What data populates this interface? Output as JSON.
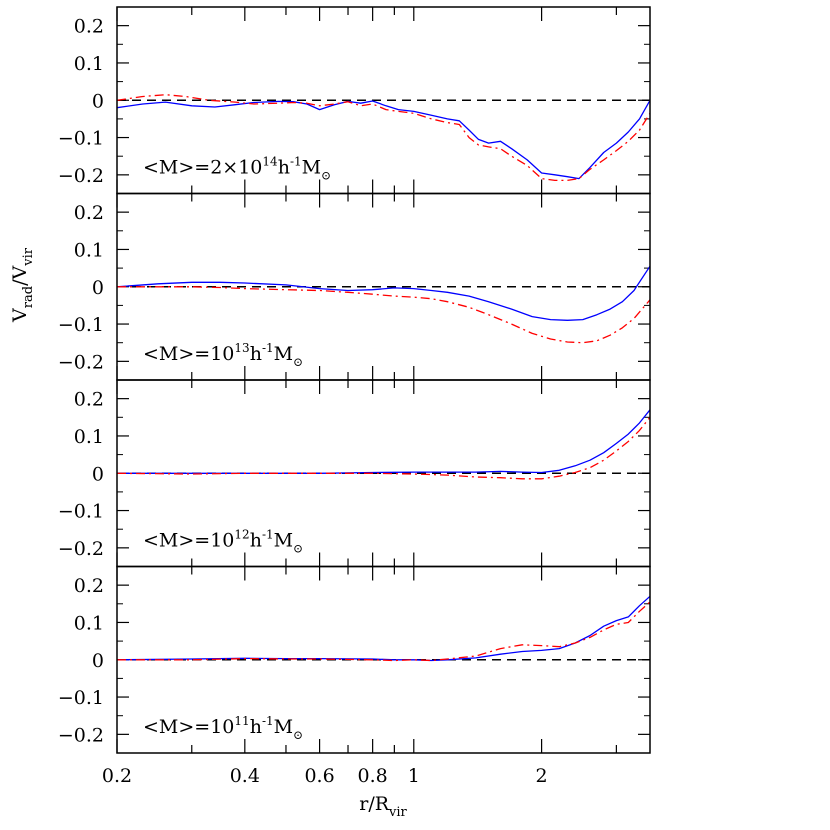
{
  "chart_data": {
    "type": "line",
    "layout": "4 vertically stacked panels sharing x-axis",
    "x_scale": "log",
    "xlim": [
      0.2,
      3.6
    ],
    "ylim": [
      -0.25,
      0.25
    ],
    "x_ticks": [
      {
        "value": 0.2,
        "label": "0.2"
      },
      {
        "value": 0.4,
        "label": "0.4"
      },
      {
        "value": 0.6,
        "label": "0.6"
      },
      {
        "value": 0.8,
        "label": "0.8"
      },
      {
        "value": 1,
        "label": "1"
      },
      {
        "value": 2,
        "label": "2"
      }
    ],
    "x_minor_ticks": [
      0.3,
      0.5,
      0.7,
      0.9,
      3
    ],
    "y_ticks": [
      {
        "value": 0.2,
        "label": "0.2"
      },
      {
        "value": 0.1,
        "label": "0.1"
      },
      {
        "value": 0,
        "label": "0"
      },
      {
        "value": -0.1,
        "label": "−0.1"
      },
      {
        "value": -0.2,
        "label": "−0.2"
      }
    ],
    "xlabel": {
      "main": "r/R",
      "sub": "vir"
    },
    "ylabel": {
      "main": "V",
      "sub1": "rad",
      "slash": "/V",
      "sub2": "vir"
    },
    "reference_line": {
      "y": 0,
      "style": "dashed",
      "color": "#000000"
    },
    "series_styles": [
      {
        "id": "solid",
        "color": "#0000ff",
        "style": "solid"
      },
      {
        "id": "dashdot",
        "color": "#ff0000",
        "style": "dash-dot"
      }
    ],
    "panels": [
      {
        "annotation": {
          "pre": "<M>=2×10",
          "exp": "14",
          "mid": "h",
          "exp2": "-1",
          "m": "M",
          "sub": "⊙"
        },
        "series": [
          {
            "style": "solid",
            "x": [
              0.2,
              0.23,
              0.26,
              0.3,
              0.34,
              0.38,
              0.42,
              0.48,
              0.52,
              0.56,
              0.6,
              0.65,
              0.7,
              0.75,
              0.8,
              0.86,
              0.92,
              1.0,
              1.1,
              1.2,
              1.28,
              1.35,
              1.42,
              1.5,
              1.6,
              1.7,
              1.85,
              2.0,
              2.15,
              2.3,
              2.45,
              2.6,
              2.8,
              3.0,
              3.2,
              3.4,
              3.6
            ],
            "y": [
              -0.02,
              -0.01,
              -0.005,
              -0.015,
              -0.018,
              -0.012,
              -0.006,
              -0.003,
              -0.004,
              -0.01,
              -0.025,
              -0.012,
              -0.003,
              -0.008,
              -0.002,
              -0.015,
              -0.025,
              -0.03,
              -0.04,
              -0.05,
              -0.055,
              -0.08,
              -0.105,
              -0.115,
              -0.11,
              -0.13,
              -0.16,
              -0.195,
              -0.2,
              -0.205,
              -0.21,
              -0.18,
              -0.14,
              -0.115,
              -0.085,
              -0.05,
              0.0
            ]
          },
          {
            "style": "dashdot",
            "x": [
              0.2,
              0.23,
              0.26,
              0.29,
              0.33,
              0.38,
              0.42,
              0.48,
              0.52,
              0.56,
              0.6,
              0.65,
              0.7,
              0.75,
              0.8,
              0.86,
              0.92,
              1.0,
              1.1,
              1.2,
              1.28,
              1.35,
              1.42,
              1.5,
              1.6,
              1.7,
              1.85,
              2.0,
              2.15,
              2.3,
              2.45,
              2.6,
              2.8,
              3.0,
              3.2,
              3.4,
              3.6
            ],
            "y": [
              0.0,
              0.01,
              0.015,
              0.01,
              0.0,
              -0.005,
              -0.01,
              -0.008,
              -0.006,
              -0.008,
              -0.015,
              -0.01,
              -0.004,
              -0.015,
              -0.01,
              -0.025,
              -0.03,
              -0.035,
              -0.05,
              -0.06,
              -0.065,
              -0.1,
              -0.12,
              -0.125,
              -0.13,
              -0.15,
              -0.175,
              -0.21,
              -0.215,
              -0.215,
              -0.21,
              -0.185,
              -0.16,
              -0.135,
              -0.11,
              -0.08,
              -0.035
            ]
          }
        ]
      },
      {
        "annotation": {
          "pre": "<M>=10",
          "exp": "13",
          "mid": "h",
          "exp2": "-1",
          "m": "M",
          "sub": "⊙"
        },
        "series": [
          {
            "style": "solid",
            "x": [
              0.2,
              0.25,
              0.3,
              0.35,
              0.4,
              0.5,
              0.6,
              0.7,
              0.8,
              0.9,
              1.0,
              1.1,
              1.2,
              1.35,
              1.5,
              1.7,
              1.9,
              2.1,
              2.3,
              2.5,
              2.7,
              2.9,
              3.1,
              3.3,
              3.6
            ],
            "y": [
              0.0,
              0.008,
              0.012,
              0.012,
              0.01,
              0.005,
              -0.005,
              -0.01,
              -0.008,
              -0.003,
              -0.005,
              -0.01,
              -0.015,
              -0.025,
              -0.04,
              -0.06,
              -0.08,
              -0.088,
              -0.09,
              -0.088,
              -0.075,
              -0.06,
              -0.04,
              -0.01,
              0.055
            ]
          },
          {
            "style": "dashdot",
            "x": [
              0.2,
              0.25,
              0.3,
              0.35,
              0.4,
              0.5,
              0.6,
              0.7,
              0.8,
              0.9,
              1.0,
              1.1,
              1.2,
              1.35,
              1.5,
              1.7,
              1.9,
              2.1,
              2.3,
              2.5,
              2.7,
              2.9,
              3.1,
              3.3,
              3.6
            ],
            "y": [
              0.0,
              0.0,
              0.0,
              -0.002,
              -0.005,
              -0.008,
              -0.01,
              -0.015,
              -0.02,
              -0.025,
              -0.028,
              -0.032,
              -0.04,
              -0.055,
              -0.075,
              -0.1,
              -0.125,
              -0.14,
              -0.148,
              -0.15,
              -0.145,
              -0.13,
              -0.11,
              -0.085,
              -0.035
            ]
          }
        ]
      },
      {
        "annotation": {
          "pre": "<M>=10",
          "exp": "12",
          "mid": "h",
          "exp2": "-1",
          "m": "M",
          "sub": "⊙"
        },
        "series": [
          {
            "style": "solid",
            "x": [
              0.2,
              0.3,
              0.4,
              0.5,
              0.6,
              0.8,
              1.0,
              1.2,
              1.4,
              1.6,
              1.8,
              2.0,
              2.2,
              2.4,
              2.6,
              2.8,
              3.0,
              3.2,
              3.4,
              3.6
            ],
            "y": [
              0.0,
              0.0,
              0.0,
              0.0,
              0.0,
              0.002,
              0.003,
              0.003,
              0.003,
              0.005,
              0.003,
              0.002,
              0.008,
              0.02,
              0.035,
              0.055,
              0.08,
              0.105,
              0.135,
              0.17
            ]
          },
          {
            "style": "dashdot",
            "x": [
              0.2,
              0.3,
              0.4,
              0.5,
              0.6,
              0.8,
              1.0,
              1.2,
              1.4,
              1.6,
              1.8,
              2.0,
              2.2,
              2.4,
              2.6,
              2.8,
              3.0,
              3.2,
              3.4,
              3.6
            ],
            "y": [
              0.0,
              -0.002,
              0.0,
              0.0,
              0.0,
              0.0,
              -0.002,
              -0.005,
              -0.01,
              -0.012,
              -0.015,
              -0.015,
              -0.008,
              0.002,
              0.015,
              0.035,
              0.06,
              0.085,
              0.115,
              0.15
            ]
          }
        ]
      },
      {
        "annotation": {
          "pre": "<M>=10",
          "exp": "11",
          "mid": "h",
          "exp2": "-1",
          "m": "M",
          "sub": "⊙"
        },
        "series": [
          {
            "style": "solid",
            "x": [
              0.2,
              0.3,
              0.4,
              0.5,
              0.6,
              0.8,
              0.9,
              1.0,
              1.1,
              1.2,
              1.4,
              1.6,
              1.8,
              2.0,
              2.2,
              2.4,
              2.6,
              2.8,
              3.0,
              3.2,
              3.4,
              3.6
            ],
            "y": [
              0.0,
              0.002,
              0.004,
              0.003,
              0.003,
              0.002,
              0.0,
              0.0,
              -0.002,
              0.0,
              0.005,
              0.015,
              0.022,
              0.025,
              0.03,
              0.045,
              0.065,
              0.09,
              0.105,
              0.115,
              0.145,
              0.17
            ]
          },
          {
            "style": "dashdot",
            "x": [
              0.2,
              0.3,
              0.4,
              0.5,
              0.6,
              0.8,
              0.9,
              1.0,
              1.1,
              1.2,
              1.4,
              1.6,
              1.8,
              2.0,
              2.2,
              2.4,
              2.6,
              2.8,
              3.0,
              3.2,
              3.4,
              3.6
            ],
            "y": [
              0.0,
              0.0,
              0.003,
              0.002,
              0.002,
              0.0,
              -0.002,
              0.0,
              -0.002,
              0.002,
              0.01,
              0.03,
              0.04,
              0.038,
              0.035,
              0.045,
              0.06,
              0.08,
              0.095,
              0.1,
              0.13,
              0.155
            ]
          }
        ]
      }
    ]
  }
}
